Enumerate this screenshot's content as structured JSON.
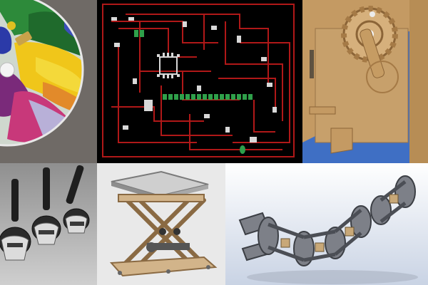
{
  "collage": {
    "tiles": [
      {
        "id": "paint",
        "subject": "painting-machine-disc"
      },
      {
        "id": "pcb",
        "subject": "circuit-board-layout"
      },
      {
        "id": "cardboard",
        "subject": "cardboard-crank-mechanism"
      },
      {
        "id": "joysticks",
        "subject": "3d-render-joysticks"
      },
      {
        "id": "lift",
        "subject": "scissor-lift-table"
      },
      {
        "id": "arm",
        "subject": "modular-robot-snake"
      }
    ]
  },
  "colors": {
    "divider": "#ffffff",
    "pcb_background": "#000000",
    "pcb_traces": "#b01818",
    "pcb_pads": "#d8d8d8",
    "pcb_green": "#2fa04a",
    "cardboard_blue": "#3f6fc4",
    "cardboard": "#c49a63"
  }
}
